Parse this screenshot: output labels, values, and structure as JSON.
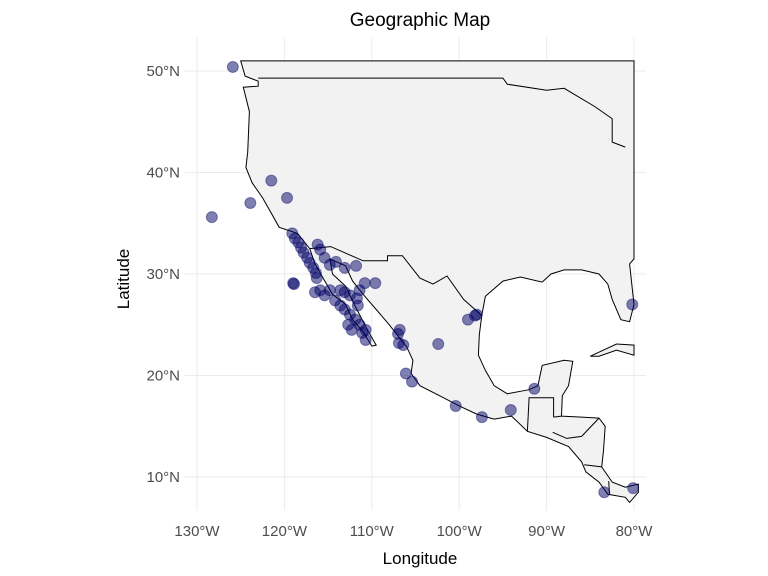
{
  "chart_data": {
    "type": "scatter",
    "title": "Geographic Map",
    "xlabel": "Longitude",
    "ylabel": "Latitude",
    "x_ticks": [
      {
        "value": -130,
        "label": "130°W"
      },
      {
        "value": -120,
        "label": "120°W"
      },
      {
        "value": -110,
        "label": "110°W"
      },
      {
        "value": -100,
        "label": "100°W"
      },
      {
        "value": -90,
        "label": "90°W"
      },
      {
        "value": -80,
        "label": "80°W"
      }
    ],
    "y_ticks": [
      {
        "value": 10,
        "label": "10°N"
      },
      {
        "value": 20,
        "label": "20°N"
      },
      {
        "value": 30,
        "label": "30°N"
      },
      {
        "value": 40,
        "label": "40°N"
      },
      {
        "value": 50,
        "label": "50°N"
      }
    ],
    "xlim": [
      -131.4,
      -78.6
    ],
    "ylim": [
      6.7,
      53.3
    ],
    "grid": true,
    "colors": {
      "point": "#000066",
      "land": "#f2f2f2",
      "border": "#000000",
      "grid": "#ebebeb"
    },
    "point_alpha": 0.5,
    "points": [
      [
        -128.3,
        35.6
      ],
      [
        -123.9,
        37.0
      ],
      [
        -121.5,
        39.2
      ],
      [
        -119.7,
        37.5
      ],
      [
        -125.9,
        50.4
      ],
      [
        -119.1,
        34.0
      ],
      [
        -118.8,
        33.5
      ],
      [
        -118.4,
        33.1
      ],
      [
        -118.1,
        32.6
      ],
      [
        -117.8,
        32.1
      ],
      [
        -117.4,
        31.6
      ],
      [
        -117.1,
        31.1
      ],
      [
        -116.7,
        30.6
      ],
      [
        -116.4,
        30.1
      ],
      [
        -116.3,
        29.6
      ],
      [
        -119.0,
        29.1
      ],
      [
        -118.9,
        29.0
      ],
      [
        -116.2,
        32.9
      ],
      [
        -115.9,
        32.4
      ],
      [
        -115.4,
        31.6
      ],
      [
        -114.8,
        30.9
      ],
      [
        -114.1,
        31.2
      ],
      [
        -113.1,
        30.6
      ],
      [
        -111.8,
        30.8
      ],
      [
        -109.6,
        29.1
      ],
      [
        -110.8,
        29.1
      ],
      [
        -113.6,
        28.4
      ],
      [
        -113.1,
        28.2
      ],
      [
        -112.5,
        27.9
      ],
      [
        -114.8,
        28.4
      ],
      [
        -115.9,
        28.4
      ],
      [
        -116.5,
        28.2
      ],
      [
        -115.4,
        27.9
      ],
      [
        -114.2,
        27.4
      ],
      [
        -113.6,
        26.9
      ],
      [
        -113.1,
        26.5
      ],
      [
        -112.5,
        26.0
      ],
      [
        -111.4,
        28.4
      ],
      [
        -111.7,
        27.6
      ],
      [
        -111.6,
        26.9
      ],
      [
        -111.9,
        25.5
      ],
      [
        -111.4,
        25.0
      ],
      [
        -111.1,
        24.2
      ],
      [
        -110.7,
        23.5
      ],
      [
        -110.7,
        24.5
      ],
      [
        -112.7,
        25.0
      ],
      [
        -112.3,
        24.5
      ],
      [
        -107.0,
        24.1
      ],
      [
        -106.8,
        24.5
      ],
      [
        -106.9,
        23.2
      ],
      [
        -106.4,
        23.0
      ],
      [
        -102.4,
        23.1
      ],
      [
        -106.1,
        20.2
      ],
      [
        -105.4,
        19.4
      ],
      [
        -100.4,
        17.0
      ],
      [
        -97.4,
        15.9
      ],
      [
        -94.1,
        16.6
      ],
      [
        -91.4,
        18.7
      ],
      [
        -99.0,
        25.5
      ],
      [
        -98.2,
        25.9
      ],
      [
        -98.0,
        26.0
      ],
      [
        -80.2,
        27.0
      ],
      [
        -83.4,
        8.5
      ],
      [
        -80.1,
        8.9
      ]
    ]
  }
}
